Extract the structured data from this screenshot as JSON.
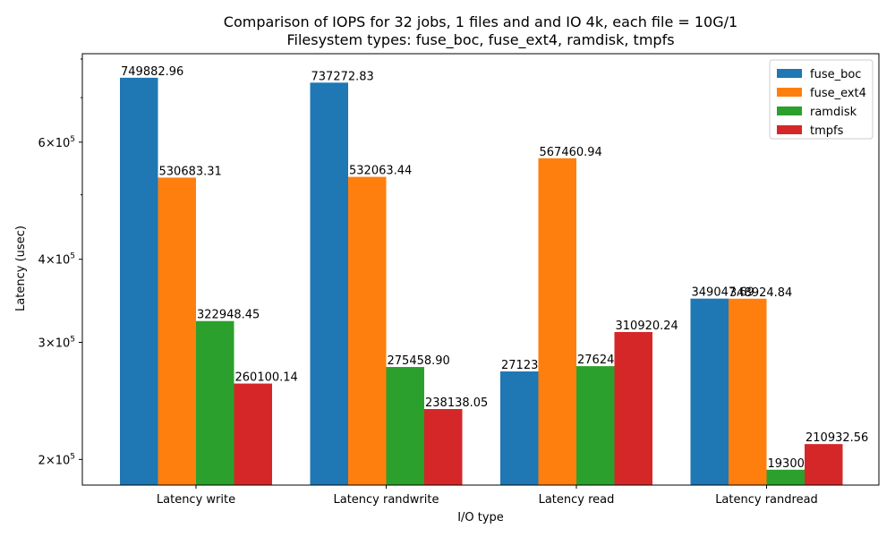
{
  "chart_data": {
    "type": "bar",
    "title": "Comparison of IOPS for 32 jobs, 1 files and  and IO 4k, each file = 10G/1",
    "subtitle": "Filesystem types: fuse_boc, fuse_ext4, ramdisk, tmpfs",
    "xlabel": "I/O type",
    "ylabel": "Latency (usec)",
    "yscale": "log",
    "ylim": [
      183000,
      815000
    ],
    "yticks": [
      {
        "value": 200000,
        "mantissa": "2",
        "base": "10",
        "exp": "5"
      },
      {
        "value": 300000,
        "mantissa": "3",
        "base": "10",
        "exp": "5"
      },
      {
        "value": 400000,
        "mantissa": "4",
        "base": "10",
        "exp": "5"
      },
      {
        "value": 600000,
        "mantissa": "6",
        "base": "10",
        "exp": "5"
      }
    ],
    "minor_yticks": [
      500000,
      700000,
      800000
    ],
    "categories": [
      "Latency write",
      "Latency randwrite",
      "Latency read",
      "Latency randread"
    ],
    "series": [
      {
        "name": "fuse_boc",
        "color": "#1f77b4",
        "values": [
          749882.96,
          737272.83,
          271233.29,
          349047.69
        ],
        "labels": [
          "749882.96",
          "737272.83",
          "271233.29",
          "349047.69"
        ]
      },
      {
        "name": "fuse_ext4",
        "color": "#ff7f0e",
        "values": [
          530683.31,
          532063.44,
          567460.94,
          348924.84
        ],
        "labels": [
          "530683.31",
          "532063.44",
          "567460.94",
          "348924.84"
        ]
      },
      {
        "name": "ramdisk",
        "color": "#2ca02c",
        "values": [
          322948.45,
          275458.9,
          276240.31,
          193007.73
        ],
        "labels": [
          "322948.45",
          "275458.90",
          "276240.31",
          "193007.73"
        ]
      },
      {
        "name": "tmpfs",
        "color": "#d62728",
        "values": [
          260100.14,
          238138.05,
          310920.24,
          210932.56
        ],
        "labels": [
          "260100.14",
          "238138.05",
          "310920.24",
          "210932.56"
        ]
      }
    ],
    "legend_position": "top-right",
    "grid": false
  }
}
